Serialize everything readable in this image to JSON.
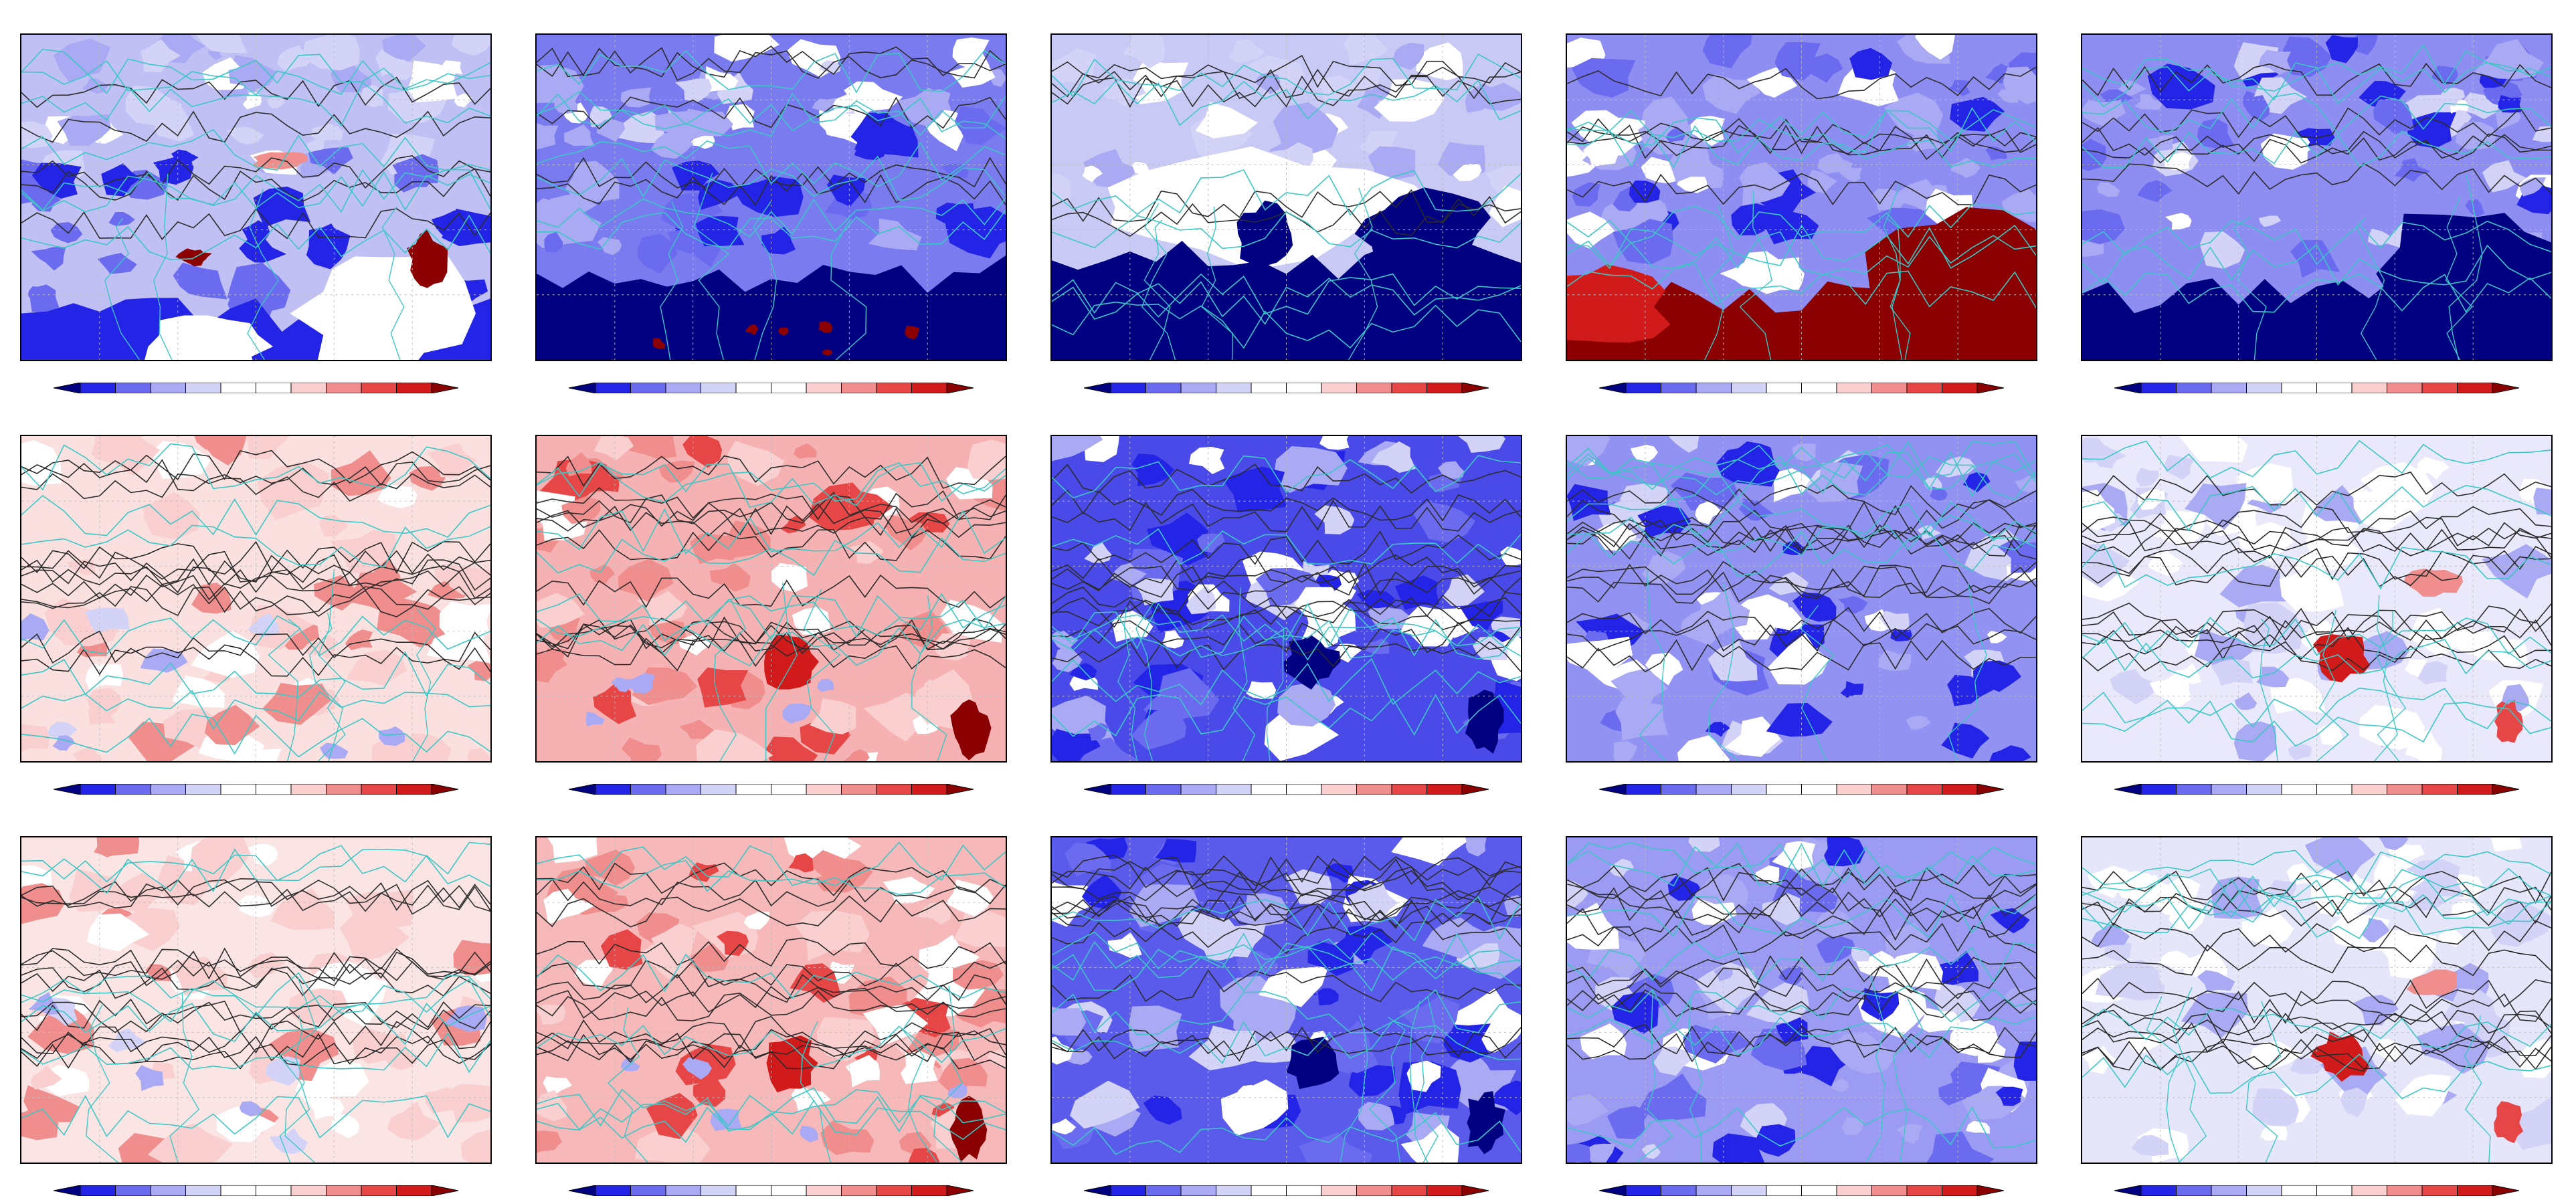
{
  "figure": {
    "rows": 3,
    "cols": 5
  },
  "colors": {
    "frame": "#000000",
    "coastline": "#3cc7c7",
    "topography_contour": "#2b2b2b",
    "gridline": "#bdbdbd"
  },
  "colorbar": {
    "orientation": "horizontal",
    "extend": "both",
    "tick_labels_visible": false,
    "levels": [
      "#000080",
      "#2424e6",
      "#6b6bef",
      "#a9a9f4",
      "#d3d3f8",
      "#ffffff",
      "#ffffff",
      "#f9cfcf",
      "#f08d8d",
      "#e64646",
      "#d11b1b",
      "#8b0000"
    ]
  },
  "panels": [
    {
      "id": "r1c1",
      "base": "#c0c0f4",
      "pattern": "mixed-blue-white-red-south"
    },
    {
      "id": "r1c2",
      "base": "#7b7bf0",
      "pattern": "blue-south-deep"
    },
    {
      "id": "r1c3",
      "base": "#c9c9f6",
      "pattern": "white-center-deep-blue-south"
    },
    {
      "id": "r1c4",
      "base": "#8e8ef2",
      "pattern": "blue-north-deep-red-south"
    },
    {
      "id": "r1c5",
      "base": "#8d8df2",
      "pattern": "blue-north-deep-blue-southeast"
    },
    {
      "id": "r2c1",
      "base": "#fbe0e0",
      "pattern": "light-red"
    },
    {
      "id": "r2c2",
      "base": "#f6b2b2",
      "pattern": "red-with-dark-spots"
    },
    {
      "id": "r2c3",
      "base": "#4a4ae9",
      "pattern": "blue-widespread"
    },
    {
      "id": "r2c4",
      "base": "#9292f2",
      "pattern": "blue-mixed"
    },
    {
      "id": "r2c5",
      "base": "#e9e9fb",
      "pattern": "light-mixed-red-spots"
    },
    {
      "id": "r3c1",
      "base": "#fbe4e4",
      "pattern": "light-red"
    },
    {
      "id": "r3c2",
      "base": "#f6b8b8",
      "pattern": "red-with-dark-spots"
    },
    {
      "id": "r3c3",
      "base": "#5a5aeb",
      "pattern": "blue-widespread"
    },
    {
      "id": "r3c4",
      "base": "#9b9bf3",
      "pattern": "blue-mixed"
    },
    {
      "id": "r3c5",
      "base": "#e6e6fb",
      "pattern": "light-mixed-red-spots"
    }
  ]
}
